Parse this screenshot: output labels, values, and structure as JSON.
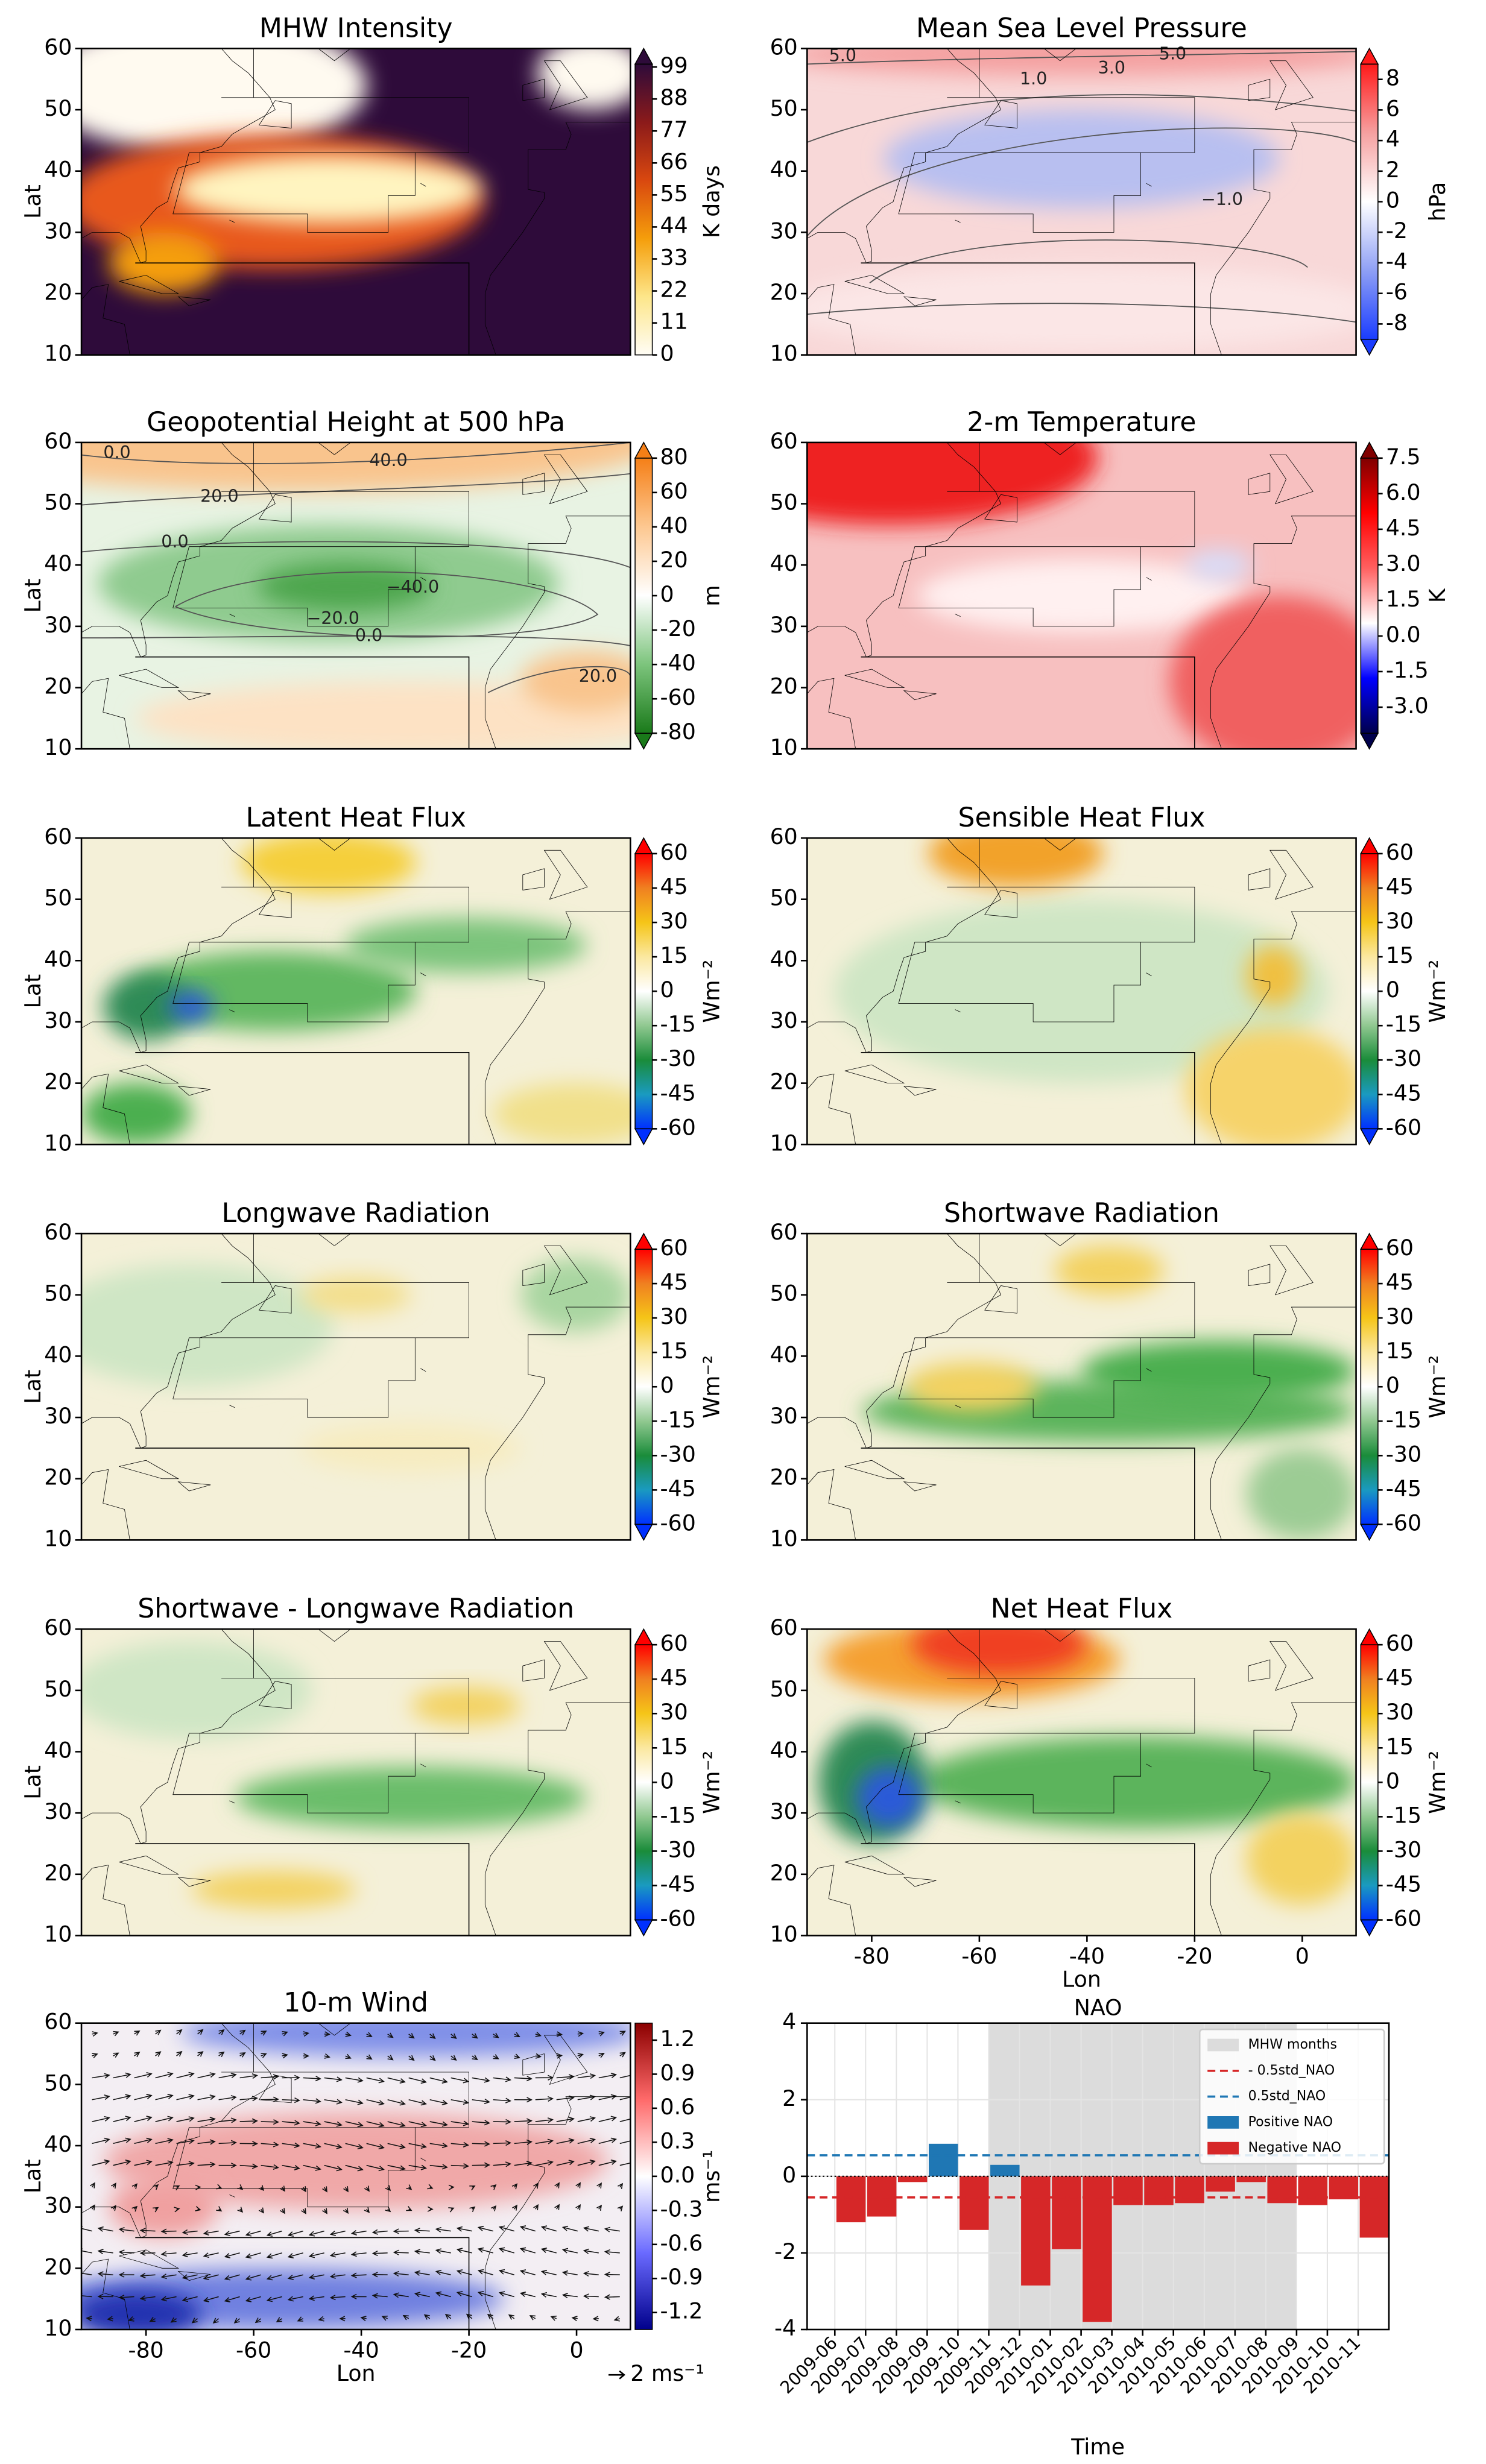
{
  "chart_data": [
    {
      "type": "map",
      "title": "MHW Intensity",
      "ylabel": "Lat",
      "ylim": [
        10,
        60
      ],
      "yticks": [
        10,
        20,
        30,
        40,
        50,
        60
      ],
      "colorbar": {
        "label": "K days",
        "clim": [
          0,
          100
        ],
        "ticks": [
          0,
          11,
          22,
          33,
          44,
          55,
          66,
          77,
          88,
          99
        ],
        "extend": "max",
        "colormap": [
          "#fffdf5",
          "#fde68a",
          "#f59e0b",
          "#d9480f",
          "#8b1a1a",
          "#2e0b3a"
        ]
      }
    },
    {
      "type": "map",
      "title": "Mean Sea Level Pressure",
      "ylim": [
        10,
        60
      ],
      "yticks": [
        10,
        20,
        30,
        40,
        50,
        60
      ],
      "contour_labels": [
        "5.0",
        "5.0",
        "3.0",
        "1.0",
        "−1.0"
      ],
      "colorbar": {
        "label": "hPa",
        "clim": [
          -9,
          9
        ],
        "ticks": [
          -8,
          -6,
          -4,
          -2,
          0,
          2,
          4,
          6,
          8
        ],
        "extend": "both",
        "colormap": [
          "#1a3cff",
          "#8fa0f5",
          "#ffffff",
          "#f6a0a0",
          "#ff1a1a"
        ]
      }
    },
    {
      "type": "map",
      "title": "Geopotential Height at 500 hPa",
      "ylabel": "Lat",
      "ylim": [
        10,
        60
      ],
      "yticks": [
        10,
        20,
        30,
        40,
        50,
        60
      ],
      "contour_labels": [
        "0.0",
        "40.0",
        "20.0",
        "0.0",
        "−40.0",
        "−20.0",
        "0.0",
        "20.0"
      ],
      "colorbar": {
        "label": "m",
        "clim": [
          -80,
          80
        ],
        "ticks": [
          -80,
          -60,
          -40,
          -20,
          0,
          20,
          40,
          60,
          80
        ],
        "extend": "both",
        "colormap": [
          "#1a7a1a",
          "#7cc47c",
          "#ffffff",
          "#fdc891",
          "#f57f17"
        ]
      }
    },
    {
      "type": "map",
      "title": "2-m Temperature",
      "ylim": [
        10,
        60
      ],
      "yticks": [
        10,
        20,
        30,
        40,
        50,
        60
      ],
      "colorbar": {
        "label": "K",
        "clim": [
          -4.1,
          7.5
        ],
        "ticks": [
          {
            "value": -3,
            "label": "-3.0"
          },
          -1.5,
          {
            "value": 0,
            "label": "0.0"
          },
          1.5,
          {
            "value": 3,
            "label": "3.0"
          },
          4.5,
          {
            "value": 6,
            "label": "6.0"
          },
          7.5
        ],
        "extend": "both",
        "colormap": [
          "#00004c",
          "#0000ff",
          "#ffffff",
          "#ff6060",
          "#ff0000",
          "#800000"
        ]
      }
    },
    {
      "type": "map",
      "title": "Latent Heat Flux",
      "ylabel": "Lat",
      "ylim": [
        10,
        60
      ],
      "yticks": [
        10,
        20,
        30,
        40,
        50,
        60
      ],
      "colorbar": {
        "label": "Wm⁻²",
        "clim": [
          -60,
          60
        ],
        "ticks": [
          -60,
          -45,
          -30,
          -15,
          0,
          15,
          30,
          45,
          60
        ],
        "extend": "both",
        "colormap": [
          "#0030ff",
          "#1a9ac0",
          "#1a8c3a",
          "#90c890",
          "#ffffff",
          "#fbe8a0",
          "#f5c518",
          "#f08020",
          "#ff0000"
        ]
      }
    },
    {
      "type": "map",
      "title": "Sensible Heat Flux",
      "ylim": [
        10,
        60
      ],
      "yticks": [
        10,
        20,
        30,
        40,
        50,
        60
      ],
      "colorbar": {
        "label": "Wm⁻²",
        "clim": [
          -60,
          60
        ],
        "ticks": [
          -60,
          -45,
          -30,
          -15,
          0,
          15,
          30,
          45,
          60
        ],
        "extend": "both",
        "colormap": [
          "#0030ff",
          "#1a9ac0",
          "#1a8c3a",
          "#90c890",
          "#ffffff",
          "#fbe8a0",
          "#f5c518",
          "#f08020",
          "#ff0000"
        ]
      }
    },
    {
      "type": "map",
      "title": "Longwave Radiation",
      "ylabel": "Lat",
      "ylim": [
        10,
        60
      ],
      "yticks": [
        10,
        20,
        30,
        40,
        50,
        60
      ],
      "colorbar": {
        "label": "Wm⁻²",
        "clim": [
          -60,
          60
        ],
        "ticks": [
          -60,
          -45,
          -30,
          -15,
          0,
          15,
          30,
          45,
          60
        ],
        "extend": "both",
        "colormap": [
          "#0030ff",
          "#1a9ac0",
          "#1a8c3a",
          "#90c890",
          "#ffffff",
          "#fbe8a0",
          "#f5c518",
          "#f08020",
          "#ff0000"
        ]
      }
    },
    {
      "type": "map",
      "title": "Shortwave Radiation",
      "ylim": [
        10,
        60
      ],
      "yticks": [
        10,
        20,
        30,
        40,
        50,
        60
      ],
      "colorbar": {
        "label": "Wm⁻²",
        "clim": [
          -60,
          60
        ],
        "ticks": [
          -60,
          -45,
          -30,
          -15,
          0,
          15,
          30,
          45,
          60
        ],
        "extend": "both",
        "colormap": [
          "#0030ff",
          "#1a9ac0",
          "#1a8c3a",
          "#90c890",
          "#ffffff",
          "#fbe8a0",
          "#f5c518",
          "#f08020",
          "#ff0000"
        ]
      }
    },
    {
      "type": "map",
      "title": "Shortwave - Longwave Radiation",
      "ylabel": "Lat",
      "ylim": [
        10,
        60
      ],
      "yticks": [
        10,
        20,
        30,
        40,
        50,
        60
      ],
      "colorbar": {
        "label": "Wm⁻²",
        "clim": [
          -60,
          60
        ],
        "ticks": [
          -60,
          -45,
          -30,
          -15,
          0,
          15,
          30,
          45,
          60
        ],
        "extend": "both",
        "colormap": [
          "#0030ff",
          "#1a9ac0",
          "#1a8c3a",
          "#90c890",
          "#ffffff",
          "#fbe8a0",
          "#f5c518",
          "#f08020",
          "#ff0000"
        ]
      }
    },
    {
      "type": "map",
      "title": "Net Heat Flux",
      "xlabel": "Lon",
      "xlim": [
        -92,
        10
      ],
      "xticks": [
        -80,
        -60,
        -40,
        -20,
        0
      ],
      "ylim": [
        10,
        60
      ],
      "yticks": [
        10,
        20,
        30,
        40,
        50,
        60
      ],
      "colorbar": {
        "label": "Wm⁻²",
        "clim": [
          -60,
          60
        ],
        "ticks": [
          -60,
          -45,
          -30,
          -15,
          0,
          15,
          30,
          45,
          60
        ],
        "extend": "both",
        "colormap": [
          "#0030ff",
          "#1a9ac0",
          "#1a8c3a",
          "#90c890",
          "#ffffff",
          "#fbe8a0",
          "#f5c518",
          "#f08020",
          "#ff0000"
        ]
      }
    },
    {
      "type": "map",
      "title": "10-m Wind",
      "xlabel": "Lon",
      "ylabel": "Lat",
      "xlim": [
        -92,
        10
      ],
      "xticks": [
        -80,
        -60,
        -40,
        -20,
        0
      ],
      "ylim": [
        10,
        60
      ],
      "yticks": [
        10,
        20,
        30,
        40,
        50,
        60
      ],
      "quiver_key": "2 ms⁻¹",
      "colorbar": {
        "label": "ms⁻¹",
        "clim": [
          -1.35,
          1.35
        ],
        "ticks": [
          -1.2,
          -0.9,
          -0.6,
          -0.3,
          {
            "value": 0,
            "label": "0.0"
          },
          0.3,
          0.6,
          0.9,
          1.2
        ],
        "extend": "none",
        "colormap": [
          "#00008b",
          "#6a6aff",
          "#ffffff",
          "#ff6a6a",
          "#8b0000"
        ]
      }
    },
    {
      "type": "bar",
      "title": "NAO",
      "xlabel": "Time",
      "categories": [
        "2009-06",
        "2009-07",
        "2009-08",
        "2009-09",
        "2009-10",
        "2009-11",
        "2009-12",
        "2010-01",
        "2010-02",
        "2010-03",
        "2010-04",
        "2010-05",
        "2010-06",
        "2010-07",
        "2010-08",
        "2010-09",
        "2010-10",
        "2010-11"
      ],
      "series": [
        {
          "name": "Positive NAO",
          "color": "#1f77b4",
          "values": [
            null,
            null,
            null,
            0.85,
            null,
            0.3,
            null,
            null,
            null,
            null,
            null,
            null,
            null,
            null,
            null,
            null,
            null,
            null
          ]
        },
        {
          "name": "Negative NAO",
          "color": "#d62728",
          "values": [
            -1.2,
            -1.05,
            -0.15,
            null,
            -1.4,
            null,
            -2.85,
            -1.9,
            -3.8,
            -0.75,
            -0.75,
            -0.7,
            -0.4,
            -0.15,
            -0.7,
            -0.75,
            -0.6,
            -1.6
          ]
        }
      ],
      "shaded_range": {
        "name": "MHW months",
        "from": "2009-11",
        "to": "2010-09",
        "color": "#dcdcdc"
      },
      "hlines": [
        {
          "name": "- 0.5std_NAO",
          "value": -0.55,
          "color": "#d62728"
        },
        {
          "name": "0.5std_NAO",
          "value": 0.55,
          "color": "#1f77b4"
        }
      ],
      "zero_line": true,
      "ylim": [
        -4,
        4
      ],
      "yticks": [
        -4,
        -2,
        0,
        2,
        4
      ],
      "grid": true,
      "legend": "upper right"
    }
  ]
}
